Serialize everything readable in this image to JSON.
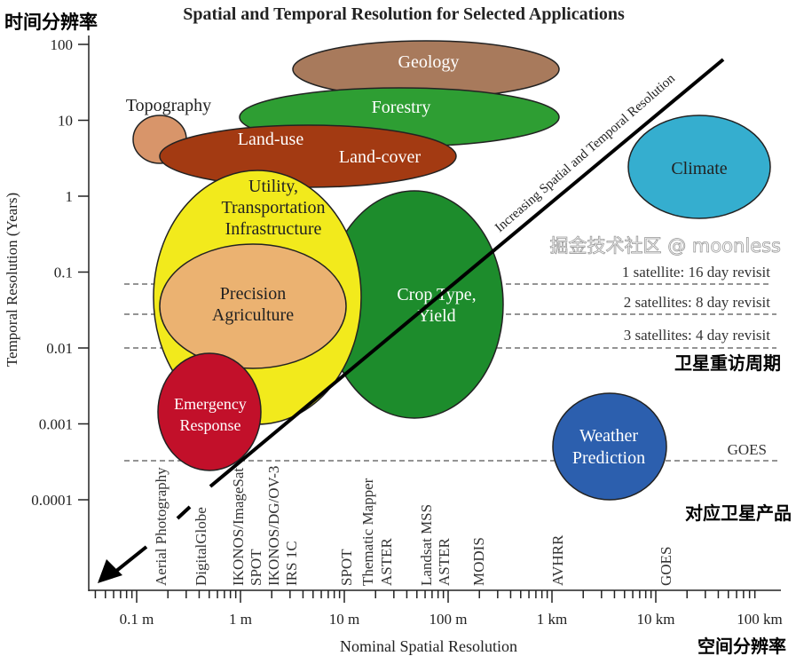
{
  "title": "Spatial and Temporal Resolution for Selected Applications",
  "annotations": {
    "temporal_cn": "时间分辨率",
    "revisit_cn": "卫星重访周期",
    "products_cn": "对应卫星产品",
    "spatial_cn": "空间分辨率",
    "watermark": "掘金技术社区 @ moonless"
  },
  "y_axis": {
    "label": "Temporal Resolution (Years)",
    "ticks": [
      "100",
      "10",
      "1",
      "0.1",
      "0.01",
      "0.001",
      "0.0001"
    ]
  },
  "x_axis": {
    "label": "Nominal Spatial Resolution",
    "ticks": [
      "0.1 m",
      "1 m",
      "10 m",
      "100 m",
      "1 km",
      "10 km",
      "100 km"
    ]
  },
  "diagonal_label": "Increasing Spatial and Temporal Resolution",
  "revisit_lines": [
    "1 satellite:  16 day revisit",
    "2 satellites:  8 day revisit",
    "3 satellites:  4 day revisit",
    "GOES"
  ],
  "applications": {
    "geology": "Geology",
    "forestry": "Forestry",
    "topography": "Topography",
    "land_use": "Land-use",
    "land_cover": "Land-cover",
    "utility": [
      "Utility,",
      "Transportation",
      "Infrastructure"
    ],
    "precision": [
      "Precision",
      "Agriculture"
    ],
    "crop": [
      "Crop Type,",
      "Yield"
    ],
    "emergency": [
      "Emergency",
      "Response"
    ],
    "climate": "Climate",
    "weather": [
      "Weather",
      "Prediction"
    ]
  },
  "sensors": [
    "Aerial Photography",
    "DigitalGlobe",
    "IKONOS/ImageSat",
    "SPOT",
    "IKONOS/DG/OV-3",
    "IRS 1C",
    "SPOT",
    "Thematic Mapper",
    "ASTER",
    "Landsat MSS",
    "ASTER",
    "MODIS",
    "AVHRR",
    "GOES"
  ],
  "colors": {
    "geology": "#a87a5c",
    "forestry": "#2e9e33",
    "topography": "#d8956a",
    "landuse": "#a33a12",
    "crop": "#1d8c2c",
    "utility": "#f2ea1c",
    "precision": "#ebb271",
    "emergency": "#c2102a",
    "climate": "#35aecf",
    "weather": "#2c5fae"
  }
}
